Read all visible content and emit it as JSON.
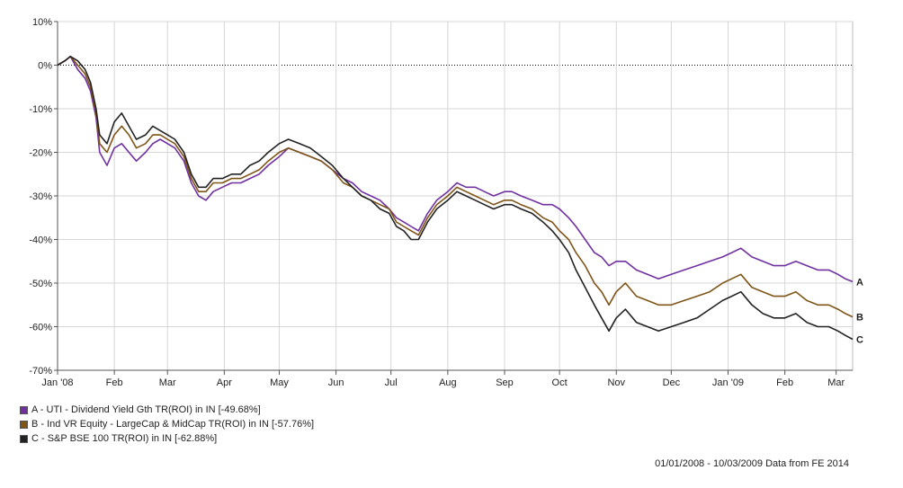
{
  "chart_data": {
    "type": "line",
    "ylim": [
      -70,
      10
    ],
    "y_ticks": [
      10,
      0,
      -10,
      -20,
      -30,
      -40,
      -50,
      -60,
      -70
    ],
    "y_tick_labels": [
      "10%",
      "0%",
      "-10%",
      "-20%",
      "-30%",
      "-40%",
      "-50%",
      "-60%",
      "-70%"
    ],
    "x_ticks": [
      {
        "date": "2008-01-01",
        "label": "Jan '08"
      },
      {
        "date": "2008-02-01",
        "label": "Feb"
      },
      {
        "date": "2008-03-01",
        "label": "Mar"
      },
      {
        "date": "2008-04-01",
        "label": "Apr"
      },
      {
        "date": "2008-05-01",
        "label": "May"
      },
      {
        "date": "2008-06-01",
        "label": "Jun"
      },
      {
        "date": "2008-07-01",
        "label": "Jul"
      },
      {
        "date": "2008-08-01",
        "label": "Aug"
      },
      {
        "date": "2008-09-01",
        "label": "Sep"
      },
      {
        "date": "2008-10-01",
        "label": "Oct"
      },
      {
        "date": "2008-11-01",
        "label": "Nov"
      },
      {
        "date": "2008-12-01",
        "label": "Dec"
      },
      {
        "date": "2009-01-01",
        "label": "Jan '09"
      },
      {
        "date": "2009-02-01",
        "label": "Feb"
      },
      {
        "date": "2009-03-01",
        "label": "Mar"
      }
    ],
    "x_range": [
      "2008-01-01",
      "2009-03-10"
    ],
    "grid": true,
    "zero_line": "dotted",
    "legend_position": "bottom-left",
    "series": [
      {
        "name": "A - UTI - Dividend Yield Gth TR(ROI) in IN [-49.68%]",
        "end_label": "A",
        "color": "#7030A0",
        "x": [
          "2008-01-01",
          "2008-01-05",
          "2008-01-08",
          "2008-01-12",
          "2008-01-16",
          "2008-01-19",
          "2008-01-22",
          "2008-01-24",
          "2008-01-28",
          "2008-02-01",
          "2008-02-05",
          "2008-02-09",
          "2008-02-13",
          "2008-02-18",
          "2008-02-22",
          "2008-02-26",
          "2008-03-01",
          "2008-03-05",
          "2008-03-10",
          "2008-03-14",
          "2008-03-18",
          "2008-03-22",
          "2008-03-26",
          "2008-03-31",
          "2008-04-05",
          "2008-04-10",
          "2008-04-15",
          "2008-04-20",
          "2008-04-25",
          "2008-05-01",
          "2008-05-06",
          "2008-05-12",
          "2008-05-18",
          "2008-05-24",
          "2008-05-30",
          "2008-06-05",
          "2008-06-10",
          "2008-06-15",
          "2008-06-20",
          "2008-06-25",
          "2008-06-30",
          "2008-07-04",
          "2008-07-08",
          "2008-07-12",
          "2008-07-16",
          "2008-07-21",
          "2008-07-26",
          "2008-08-01",
          "2008-08-06",
          "2008-08-11",
          "2008-08-16",
          "2008-08-21",
          "2008-08-26",
          "2008-09-01",
          "2008-09-05",
          "2008-09-10",
          "2008-09-16",
          "2008-09-22",
          "2008-09-27",
          "2008-10-01",
          "2008-10-06",
          "2008-10-10",
          "2008-10-15",
          "2008-10-20",
          "2008-10-24",
          "2008-10-28",
          "2008-11-01",
          "2008-11-06",
          "2008-11-12",
          "2008-11-18",
          "2008-11-24",
          "2008-12-01",
          "2008-12-08",
          "2008-12-15",
          "2008-12-22",
          "2008-12-29",
          "2009-01-03",
          "2009-01-08",
          "2009-01-14",
          "2009-01-20",
          "2009-01-26",
          "2009-02-01",
          "2009-02-07",
          "2009-02-13",
          "2009-02-19",
          "2009-02-25",
          "2009-03-02",
          "2009-03-06",
          "2009-03-10"
        ],
        "y": [
          0,
          1,
          2,
          -1,
          -3,
          -6,
          -12,
          -20,
          -23,
          -19,
          -18,
          -20,
          -22,
          -20,
          -18,
          -17,
          -18,
          -19,
          -22,
          -27,
          -30,
          -31,
          -29,
          -28,
          -27,
          -27,
          -26,
          -25,
          -23,
          -21,
          -19,
          -20,
          -21,
          -22,
          -24,
          -26,
          -27,
          -29,
          -30,
          -31,
          -33,
          -35,
          -36,
          -37,
          -38,
          -34,
          -31,
          -29,
          -27,
          -28,
          -28,
          -29,
          -30,
          -29,
          -29,
          -30,
          -31,
          -32,
          -32,
          -33,
          -35,
          -37,
          -40,
          -43,
          -44,
          -46,
          -45,
          -45,
          -47,
          -48,
          -49,
          -48,
          -47,
          -46,
          -45,
          -44,
          -43,
          -42,
          -44,
          -45,
          -46,
          -46,
          -45,
          -46,
          -47,
          -47,
          -48,
          -49,
          -49.68
        ]
      },
      {
        "name": "B - Ind VR Equity - LargeCap & MidCap TR(ROI) in IN [-57.76%]",
        "end_label": "B",
        "color": "#7F5417",
        "x": [
          "2008-01-01",
          "2008-01-05",
          "2008-01-08",
          "2008-01-12",
          "2008-01-16",
          "2008-01-19",
          "2008-01-22",
          "2008-01-24",
          "2008-01-28",
          "2008-02-01",
          "2008-02-05",
          "2008-02-09",
          "2008-02-13",
          "2008-02-18",
          "2008-02-22",
          "2008-02-26",
          "2008-03-01",
          "2008-03-05",
          "2008-03-10",
          "2008-03-14",
          "2008-03-18",
          "2008-03-22",
          "2008-03-26",
          "2008-03-31",
          "2008-04-05",
          "2008-04-10",
          "2008-04-15",
          "2008-04-20",
          "2008-04-25",
          "2008-05-01",
          "2008-05-06",
          "2008-05-12",
          "2008-05-18",
          "2008-05-24",
          "2008-05-30",
          "2008-06-05",
          "2008-06-10",
          "2008-06-15",
          "2008-06-20",
          "2008-06-25",
          "2008-06-30",
          "2008-07-04",
          "2008-07-08",
          "2008-07-12",
          "2008-07-16",
          "2008-07-21",
          "2008-07-26",
          "2008-08-01",
          "2008-08-06",
          "2008-08-11",
          "2008-08-16",
          "2008-08-21",
          "2008-08-26",
          "2008-09-01",
          "2008-09-05",
          "2008-09-10",
          "2008-09-16",
          "2008-09-22",
          "2008-09-27",
          "2008-10-01",
          "2008-10-06",
          "2008-10-10",
          "2008-10-15",
          "2008-10-20",
          "2008-10-24",
          "2008-10-28",
          "2008-11-01",
          "2008-11-06",
          "2008-11-12",
          "2008-11-18",
          "2008-11-24",
          "2008-12-01",
          "2008-12-08",
          "2008-12-15",
          "2008-12-22",
          "2008-12-29",
          "2009-01-03",
          "2009-01-08",
          "2009-01-14",
          "2009-01-20",
          "2009-01-26",
          "2009-02-01",
          "2009-02-07",
          "2009-02-13",
          "2009-02-19",
          "2009-02-25",
          "2009-03-02",
          "2009-03-06",
          "2009-03-10"
        ],
        "y": [
          0,
          1,
          2,
          0,
          -2,
          -5,
          -11,
          -18,
          -20,
          -16,
          -14,
          -16,
          -19,
          -18,
          -16,
          -16,
          -17,
          -18,
          -21,
          -26,
          -29,
          -29,
          -27,
          -27,
          -26,
          -26,
          -25,
          -24,
          -22,
          -20,
          -19,
          -20,
          -21,
          -22,
          -24,
          -27,
          -28,
          -30,
          -31,
          -32,
          -33,
          -36,
          -37,
          -38,
          -39,
          -35,
          -32,
          -30,
          -28,
          -29,
          -30,
          -31,
          -32,
          -31,
          -31,
          -32,
          -33,
          -35,
          -36,
          -38,
          -40,
          -43,
          -46,
          -50,
          -52,
          -55,
          -52,
          -50,
          -53,
          -54,
          -55,
          -55,
          -54,
          -53,
          -52,
          -50,
          -49,
          -48,
          -51,
          -52,
          -53,
          -53,
          -52,
          -54,
          -55,
          -55,
          -56,
          -57,
          -57.76
        ]
      },
      {
        "name": "C - S&P BSE 100 TR(ROI) in IN [-62.88%]",
        "end_label": "C",
        "color": "#222222",
        "x": [
          "2008-01-01",
          "2008-01-05",
          "2008-01-08",
          "2008-01-12",
          "2008-01-16",
          "2008-01-19",
          "2008-01-22",
          "2008-01-24",
          "2008-01-28",
          "2008-02-01",
          "2008-02-05",
          "2008-02-09",
          "2008-02-13",
          "2008-02-18",
          "2008-02-22",
          "2008-02-26",
          "2008-03-01",
          "2008-03-05",
          "2008-03-10",
          "2008-03-14",
          "2008-03-18",
          "2008-03-22",
          "2008-03-26",
          "2008-03-31",
          "2008-04-05",
          "2008-04-10",
          "2008-04-15",
          "2008-04-20",
          "2008-04-25",
          "2008-05-01",
          "2008-05-06",
          "2008-05-12",
          "2008-05-18",
          "2008-05-24",
          "2008-05-30",
          "2008-06-05",
          "2008-06-10",
          "2008-06-15",
          "2008-06-20",
          "2008-06-25",
          "2008-06-30",
          "2008-07-04",
          "2008-07-08",
          "2008-07-12",
          "2008-07-16",
          "2008-07-21",
          "2008-07-26",
          "2008-08-01",
          "2008-08-06",
          "2008-08-11",
          "2008-08-16",
          "2008-08-21",
          "2008-08-26",
          "2008-09-01",
          "2008-09-05",
          "2008-09-10",
          "2008-09-16",
          "2008-09-22",
          "2008-09-27",
          "2008-10-01",
          "2008-10-06",
          "2008-10-10",
          "2008-10-15",
          "2008-10-20",
          "2008-10-24",
          "2008-10-28",
          "2008-11-01",
          "2008-11-06",
          "2008-11-12",
          "2008-11-18",
          "2008-11-24",
          "2008-12-01",
          "2008-12-08",
          "2008-12-15",
          "2008-12-22",
          "2008-12-29",
          "2009-01-03",
          "2009-01-08",
          "2009-01-14",
          "2009-01-20",
          "2009-01-26",
          "2009-02-01",
          "2009-02-07",
          "2009-02-13",
          "2009-02-19",
          "2009-02-25",
          "2009-03-02",
          "2009-03-06",
          "2009-03-10"
        ],
        "y": [
          0,
          1,
          2,
          1,
          -1,
          -4,
          -10,
          -16,
          -18,
          -13,
          -11,
          -14,
          -17,
          -16,
          -14,
          -15,
          -16,
          -17,
          -20,
          -25,
          -28,
          -28,
          -26,
          -26,
          -25,
          -25,
          -23,
          -22,
          -20,
          -18,
          -17,
          -18,
          -19,
          -21,
          -23,
          -26,
          -28,
          -30,
          -31,
          -33,
          -34,
          -37,
          -38,
          -40,
          -40,
          -36,
          -33,
          -31,
          -29,
          -30,
          -31,
          -32,
          -33,
          -32,
          -32,
          -33,
          -34,
          -36,
          -38,
          -40,
          -43,
          -47,
          -51,
          -55,
          -58,
          -61,
          -58,
          -56,
          -59,
          -60,
          -61,
          -60,
          -59,
          -58,
          -56,
          -54,
          -53,
          -52,
          -55,
          -57,
          -58,
          -58,
          -57,
          -59,
          -60,
          -60,
          -61,
          -62,
          -62.88
        ]
      }
    ],
    "footer_text": "01/01/2008 - 10/03/2009 Data from FE 2014"
  }
}
